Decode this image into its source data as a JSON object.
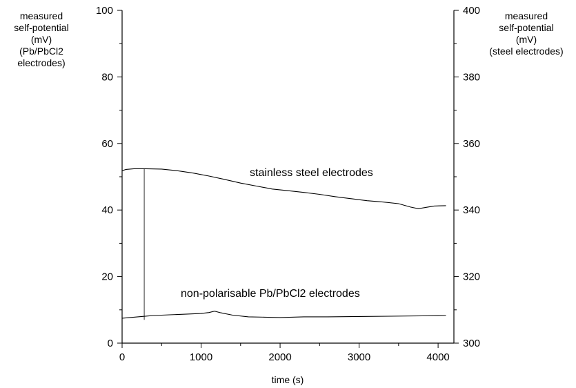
{
  "chart_data": {
    "type": "line",
    "xlabel": "time (s)",
    "ylabel_left": [
      "measured",
      "self-potential",
      "(mV)",
      "(Pb/PbCl2",
      "electrodes)"
    ],
    "ylabel_right": [
      "measured",
      "self-potential",
      "(mV)",
      "(steel electrodes)"
    ],
    "xlim": [
      0,
      4200
    ],
    "ylim_left": [
      0,
      100
    ],
    "ylim_right": [
      300,
      400
    ],
    "x_ticks": [
      "0",
      "1000",
      "2000",
      "3000",
      "4000"
    ],
    "y_left_ticks": [
      "0",
      "20",
      "40",
      "60",
      "80",
      "100"
    ],
    "y_right_ticks": [
      "300",
      "320",
      "340",
      "360",
      "380",
      "400"
    ],
    "annotations": [
      {
        "text": "stainless steel electrodes"
      },
      {
        "text": "non-polarisable Pb/PbCl2 electrodes"
      }
    ],
    "series": [
      {
        "axis": "right",
        "x": [
          0,
          50,
          150,
          300,
          500,
          700,
          900,
          1100,
          1300,
          1500,
          1700,
          1900,
          2100,
          2300,
          2500,
          2700,
          2900,
          3100,
          3300,
          3500,
          3650,
          3750,
          3850,
          3950,
          4100
        ],
        "y": [
          351.8,
          352.2,
          352.4,
          352.4,
          352.3,
          351.8,
          351.1,
          350.2,
          349.2,
          348.1,
          347.2,
          346.3,
          345.8,
          345.3,
          344.7,
          344.0,
          343.4,
          342.8,
          342.4,
          341.9,
          340.9,
          340.4,
          340.8,
          341.2,
          341.3
        ]
      },
      {
        "axis": "left",
        "x": [
          0,
          100,
          250,
          400,
          600,
          800,
          1000,
          1100,
          1170,
          1250,
          1400,
          1600,
          1800,
          2000,
          2300,
          2600,
          3000,
          3400,
          3800,
          4100
        ],
        "y": [
          7.5,
          7.7,
          8.0,
          8.3,
          8.5,
          8.7,
          8.9,
          9.2,
          9.6,
          9.1,
          8.4,
          7.9,
          7.8,
          7.7,
          7.9,
          7.9,
          8.0,
          8.1,
          8.2,
          8.3
        ]
      }
    ],
    "spike": {
      "x": 280,
      "y_top": 52.5,
      "y_bottom": 7.0
    }
  }
}
